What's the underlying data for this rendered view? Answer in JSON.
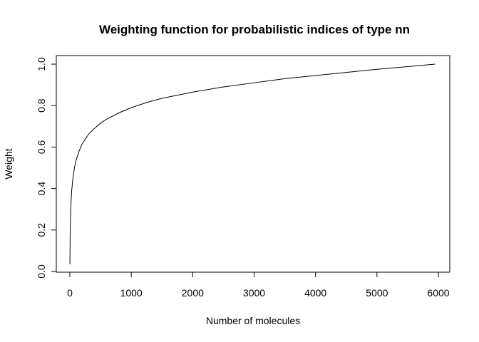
{
  "chart_data": {
    "type": "line",
    "title": "Weighting function for probabilistic indices of type nn",
    "xlabel": "Number of molecules",
    "ylabel": "Weight",
    "xlim": [
      0,
      6000
    ],
    "ylim": [
      0.0,
      1.0
    ],
    "x_ticks": [
      0,
      1000,
      2000,
      3000,
      4000,
      5000,
      6000
    ],
    "x_tick_labels": [
      "0",
      "1000",
      "2000",
      "3000",
      "4000",
      "5000",
      "6000"
    ],
    "y_ticks": [
      0.0,
      0.2,
      0.4,
      0.6,
      0.8,
      1.0
    ],
    "y_tick_labels": [
      "0.0",
      "0.2",
      "0.4",
      "0.6",
      "0.8",
      "1.0"
    ],
    "grid": false,
    "legend": "none",
    "line_color": "#000000",
    "series": [
      {
        "x": [
          1,
          5,
          10,
          20,
          30,
          50,
          75,
          100,
          150,
          200,
          300,
          400,
          500,
          600,
          800,
          1000,
          1250,
          1500,
          2000,
          2500,
          3000,
          3500,
          4000,
          4500,
          5000,
          5500,
          5946
        ],
        "y": [
          0.035,
          0.18,
          0.26,
          0.34,
          0.39,
          0.45,
          0.5,
          0.535,
          0.58,
          0.615,
          0.66,
          0.69,
          0.715,
          0.735,
          0.765,
          0.79,
          0.815,
          0.835,
          0.865,
          0.89,
          0.91,
          0.93,
          0.945,
          0.96,
          0.975,
          0.988,
          1.0
        ]
      }
    ]
  }
}
